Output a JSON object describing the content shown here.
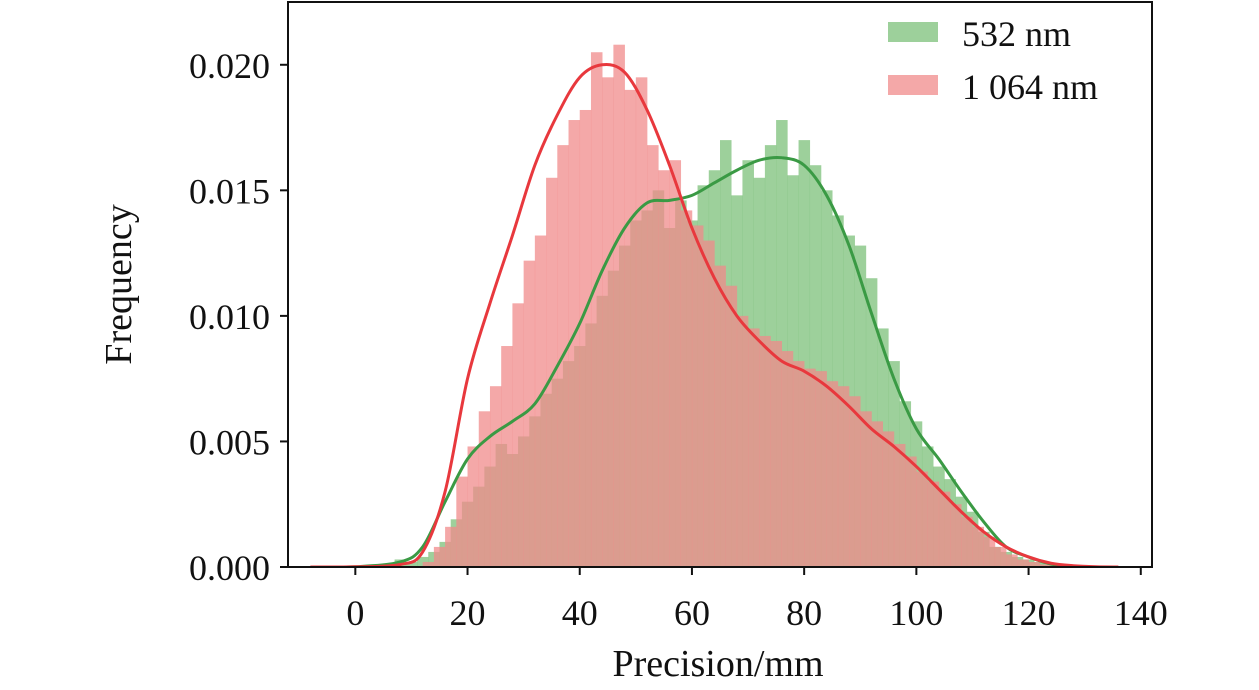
{
  "chart_data": {
    "type": "histogram",
    "title": "",
    "xlabel": "Precision/mm",
    "ylabel": "Frequency",
    "xlim": [
      -12,
      142
    ],
    "ylim": [
      0,
      0.0225
    ],
    "x_ticks": [
      0,
      20,
      40,
      60,
      80,
      100,
      120,
      140
    ],
    "x_tick_labels": [
      "0",
      "20",
      "40",
      "60",
      "80",
      "100",
      "120",
      "140"
    ],
    "y_ticks": [
      0.0,
      0.005,
      0.01,
      0.015,
      0.02
    ],
    "y_tick_labels": [
      "0.000",
      "0.005",
      "0.010",
      "0.015",
      "0.020"
    ],
    "grid": false,
    "legend_position": "top-right",
    "bin_width": 1,
    "series": [
      {
        "name": "532 nm",
        "color": "#3a9a44",
        "fill_color": "#7cc07a",
        "fill_opacity": 0.75,
        "histogram_bin_starts": [
          7,
          9,
          11,
          13,
          15,
          17,
          19,
          21,
          23,
          25,
          27,
          29,
          31,
          33,
          35,
          37,
          39,
          41,
          43,
          45,
          47,
          49,
          51,
          53,
          55,
          57,
          59,
          61,
          63,
          65,
          67,
          69,
          71,
          73,
          75,
          77,
          79,
          81,
          83,
          85,
          87,
          89,
          91,
          93,
          95,
          97,
          99,
          101,
          103,
          105,
          107,
          109,
          111,
          113,
          115,
          117,
          119,
          121,
          123
        ],
        "histogram_values": [
          0.0003,
          0.0002,
          0.0004,
          0.0006,
          0.001,
          0.0019,
          0.0026,
          0.0032,
          0.004,
          0.0049,
          0.0045,
          0.0052,
          0.006,
          0.0069,
          0.0075,
          0.0082,
          0.0088,
          0.0097,
          0.0108,
          0.0118,
          0.0128,
          0.0138,
          0.0142,
          0.015,
          0.0135,
          0.0146,
          0.0138,
          0.0152,
          0.0158,
          0.017,
          0.0148,
          0.0162,
          0.0155,
          0.0168,
          0.0178,
          0.0156,
          0.017,
          0.016,
          0.015,
          0.014,
          0.0132,
          0.0128,
          0.0115,
          0.0095,
          0.0082,
          0.0066,
          0.0058,
          0.0048,
          0.004,
          0.0035,
          0.0028,
          0.0022,
          0.0014,
          0.0008,
          0.0006,
          0.0004,
          0.0003,
          0.0002,
          0.0001
        ],
        "kde_x": [
          -8,
          0,
          8,
          12,
          16,
          20,
          24,
          28,
          32,
          36,
          40,
          44,
          48,
          52,
          56,
          60,
          64,
          68,
          72,
          76,
          80,
          84,
          88,
          92,
          96,
          100,
          104,
          108,
          112,
          116,
          120,
          124,
          128
        ],
        "kde_y": [
          0.0,
          1e-05,
          0.0002,
          0.0008,
          0.0026,
          0.0043,
          0.0052,
          0.0058,
          0.0065,
          0.008,
          0.0097,
          0.0118,
          0.0135,
          0.0145,
          0.0146,
          0.0148,
          0.0153,
          0.0158,
          0.0162,
          0.0163,
          0.016,
          0.0148,
          0.0128,
          0.0101,
          0.0075,
          0.0055,
          0.0043,
          0.003,
          0.0018,
          0.0008,
          0.0004,
          0.00012,
          0.0
        ]
      },
      {
        "name": "1 064 nm",
        "color": "#e8383d",
        "fill_color": "#f08b8b",
        "fill_opacity": 0.75,
        "histogram_bin_starts": [
          12,
          14,
          16,
          18,
          20,
          22,
          24,
          26,
          28,
          30,
          32,
          34,
          36,
          38,
          40,
          42,
          44,
          46,
          48,
          50,
          52,
          54,
          56,
          58,
          60,
          62,
          64,
          66,
          68,
          70,
          72,
          74,
          76,
          78,
          80,
          82,
          84,
          86,
          88,
          90,
          92,
          94,
          96,
          98,
          100,
          102,
          104,
          106,
          108,
          110,
          112,
          114,
          116,
          118,
          120,
          122,
          124,
          126,
          128,
          130,
          132,
          134
        ],
        "histogram_values": [
          0.0002,
          0.0008,
          0.0016,
          0.0036,
          0.0048,
          0.0062,
          0.0072,
          0.0088,
          0.0105,
          0.0122,
          0.0132,
          0.0155,
          0.0168,
          0.0178,
          0.0182,
          0.0205,
          0.0195,
          0.0208,
          0.019,
          0.0195,
          0.0168,
          0.0158,
          0.0162,
          0.0142,
          0.0136,
          0.013,
          0.012,
          0.0112,
          0.01,
          0.0095,
          0.0092,
          0.009,
          0.0086,
          0.0082,
          0.0079,
          0.0078,
          0.0074,
          0.0072,
          0.0068,
          0.0062,
          0.0058,
          0.0054,
          0.0049,
          0.0044,
          0.0038,
          0.0034,
          0.003,
          0.0025,
          0.002,
          0.0016,
          0.0012,
          0.0008,
          0.0005,
          0.0003,
          0.0002,
          0.0001,
          0.0001,
          5e-05,
          3e-05,
          2e-05,
          1e-05,
          0.0
        ],
        "kde_x": [
          -8,
          0,
          8,
          12,
          16,
          20,
          24,
          28,
          32,
          36,
          40,
          44,
          48,
          52,
          56,
          60,
          64,
          68,
          72,
          76,
          80,
          84,
          88,
          92,
          96,
          100,
          104,
          108,
          112,
          116,
          120,
          124,
          128,
          132,
          136
        ],
        "kde_y": [
          0.0,
          1e-05,
          0.0001,
          0.0006,
          0.003,
          0.0075,
          0.0105,
          0.0132,
          0.016,
          0.018,
          0.0195,
          0.02,
          0.0197,
          0.0182,
          0.016,
          0.0135,
          0.0115,
          0.01,
          0.009,
          0.0082,
          0.0078,
          0.0072,
          0.0064,
          0.0055,
          0.0048,
          0.004,
          0.0031,
          0.0022,
          0.0014,
          0.0008,
          0.0004,
          0.00015,
          5e-05,
          1e-05,
          0.0
        ]
      }
    ]
  }
}
